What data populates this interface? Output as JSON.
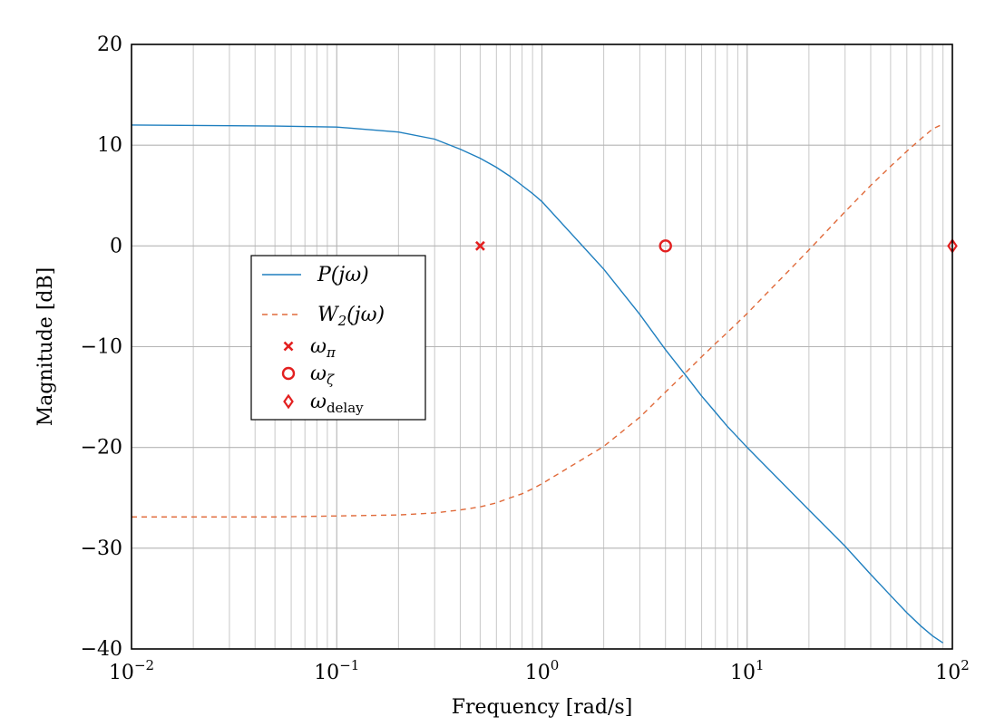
{
  "chart_data": {
    "type": "line",
    "title": "",
    "xlabel": "Frequency [rad/s]",
    "ylabel": "Magnitude [dB]",
    "xscale": "log",
    "xlim": [
      0.01,
      100
    ],
    "ylim": [
      -40,
      20
    ],
    "grid": true,
    "legend_position": "center-left",
    "x_tick_labels": [
      {
        "base": "10",
        "exp": "−2"
      },
      {
        "base": "10",
        "exp": "−1"
      },
      {
        "base": "10",
        "exp": "0"
      },
      {
        "base": "10",
        "exp": "1"
      },
      {
        "base": "10",
        "exp": "2"
      }
    ],
    "y_tick_labels": [
      "20",
      "10",
      "0",
      "−10",
      "−20",
      "−30",
      "−40"
    ],
    "y_ticks": [
      20,
      10,
      0,
      -10,
      -20,
      -30,
      -40
    ],
    "x_ticks": [
      0.01,
      0.1,
      1,
      10,
      100
    ],
    "series": [
      {
        "name": "P(jω)",
        "style": "solid",
        "color": "#1f7fbf",
        "x": [
          0.01,
          0.05,
          0.1,
          0.2,
          0.3,
          0.4,
          0.5,
          0.6,
          0.7,
          0.8,
          0.9,
          1,
          2,
          3,
          4,
          5,
          6,
          7,
          8,
          9,
          10,
          20,
          30,
          40,
          50,
          60,
          70,
          80,
          90
        ],
        "y": [
          12.0,
          11.9,
          11.8,
          11.3,
          10.6,
          9.6,
          8.7,
          7.8,
          6.9,
          6.0,
          5.2,
          4.4,
          -2.3,
          -6.8,
          -10.3,
          -12.8,
          -14.9,
          -16.5,
          -17.9,
          -19.0,
          -20.0,
          -26.2,
          -29.8,
          -32.6,
          -34.7,
          -36.4,
          -37.7,
          -38.7,
          -39.4
        ]
      },
      {
        "name": "W₂(jω)",
        "style": "dashed",
        "color": "#e06a3a",
        "x": [
          0.01,
          0.05,
          0.1,
          0.2,
          0.3,
          0.4,
          0.5,
          0.6,
          0.7,
          0.8,
          0.9,
          1,
          2,
          3,
          4,
          5,
          6,
          7,
          8,
          9,
          10,
          20,
          30,
          40,
          50,
          60,
          70,
          80,
          90
        ],
        "y": [
          -26.9,
          -26.9,
          -26.8,
          -26.7,
          -26.5,
          -26.2,
          -25.9,
          -25.5,
          -25.0,
          -24.6,
          -24.1,
          -23.6,
          -19.9,
          -17.0,
          -14.5,
          -12.6,
          -11.0,
          -9.7,
          -8.6,
          -7.6,
          -6.7,
          -0.4,
          3.4,
          6.0,
          7.9,
          9.4,
          10.6,
          11.6,
          12.1
        ]
      }
    ],
    "markers": [
      {
        "name": "ω",
        "sub": "π",
        "shape": "cross",
        "color": "#e32020",
        "x": 0.5,
        "y": 0
      },
      {
        "name": "ω",
        "sub": "ζ",
        "shape": "circle",
        "color": "#e32020",
        "x": 4,
        "y": 0
      },
      {
        "name": "ω",
        "sub": "delay",
        "shape": "diamond",
        "color": "#e32020",
        "x": 100,
        "y": 0
      }
    ],
    "legend": [
      {
        "label": "P(jω)",
        "kind": "solid",
        "color": "#1f7fbf"
      },
      {
        "label": "W",
        "sub": "2",
        "suffix": "(jω)",
        "kind": "dashed",
        "color": "#e06a3a"
      },
      {
        "label": "ω",
        "sub": "π",
        "kind": "cross",
        "color": "#e32020"
      },
      {
        "label": "ω",
        "sub": "ζ",
        "kind": "circle",
        "color": "#e32020"
      },
      {
        "label": "ω",
        "sub": "delay",
        "kind": "diamond",
        "color": "#e32020"
      }
    ]
  }
}
